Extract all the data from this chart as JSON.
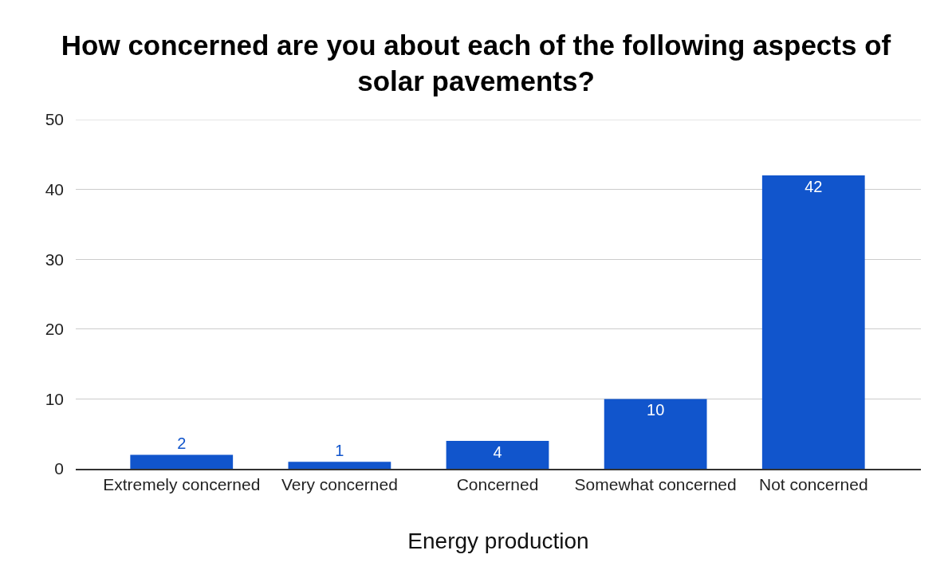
{
  "chart_data": {
    "type": "bar",
    "title": "How concerned are you about each of the following aspects of solar pavements?",
    "xlabel": "Energy production",
    "categories": [
      "Extremely concerned",
      "Very concerned",
      "Concerned",
      "Somewhat concerned",
      "Not concerned"
    ],
    "values": [
      2,
      1,
      4,
      10,
      42
    ],
    "color": "#1155cc",
    "ylim": [
      0,
      50
    ],
    "yticks": [
      0,
      10,
      20,
      30,
      40,
      50
    ],
    "grid": "y",
    "data_labels": true
  }
}
